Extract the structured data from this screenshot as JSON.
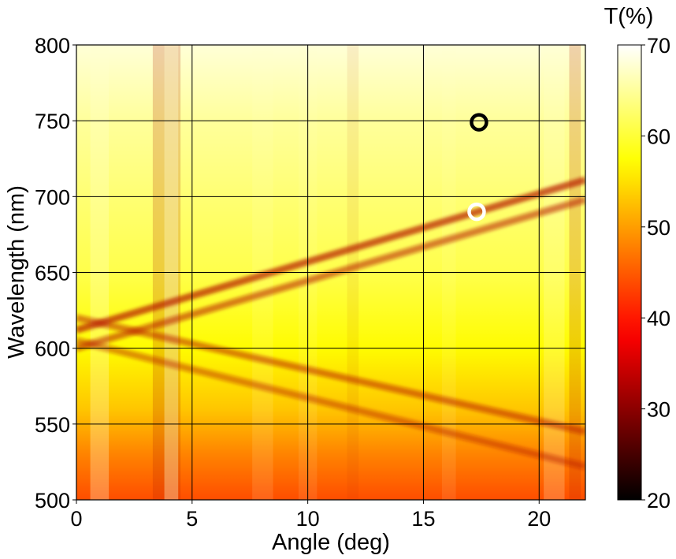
{
  "chart_data": {
    "type": "heatmap",
    "title": "",
    "xlabel": "Angle (deg)",
    "ylabel": "Wavelength (nm)",
    "xlim": [
      0,
      22
    ],
    "ylim": [
      500,
      800
    ],
    "xticks": [
      0,
      5,
      10,
      15,
      20
    ],
    "yticks": [
      500,
      550,
      600,
      650,
      700,
      750,
      800
    ],
    "grid": true,
    "colorbar": {
      "label": "T(%)",
      "range": [
        20,
        70
      ],
      "ticks": [
        20,
        30,
        40,
        50,
        60,
        70
      ],
      "colormap": "hot"
    },
    "bands": [
      {
        "name": "upper-band-1",
        "points": [
          [
            0,
            612
          ],
          [
            22,
            711
          ]
        ],
        "depth": 0.22
      },
      {
        "name": "upper-band-2",
        "points": [
          [
            0,
            600
          ],
          [
            22,
            698
          ]
        ],
        "depth": 0.17
      },
      {
        "name": "lower-band-1",
        "points": [
          [
            0,
            620
          ],
          [
            22,
            545
          ]
        ],
        "depth": 0.16
      },
      {
        "name": "lower-band-2",
        "points": [
          [
            0,
            605
          ],
          [
            22,
            522
          ]
        ],
        "depth": 0.14
      }
    ],
    "background_gradient": [
      {
        "wavelength": 500,
        "T": 44
      },
      {
        "wavelength": 530,
        "T": 48
      },
      {
        "wavelength": 560,
        "T": 53
      },
      {
        "wavelength": 600,
        "T": 57
      },
      {
        "wavelength": 650,
        "T": 61
      },
      {
        "wavelength": 700,
        "T": 63
      },
      {
        "wavelength": 750,
        "T": 65
      },
      {
        "wavelength": 800,
        "T": 68
      }
    ],
    "markers": [
      {
        "name": "black-circle-marker",
        "angle": 17.4,
        "wavelength": 749,
        "color": "#000000"
      },
      {
        "name": "white-circle-marker",
        "angle": 17.3,
        "wavelength": 690,
        "color": "#ffffff"
      }
    ]
  }
}
